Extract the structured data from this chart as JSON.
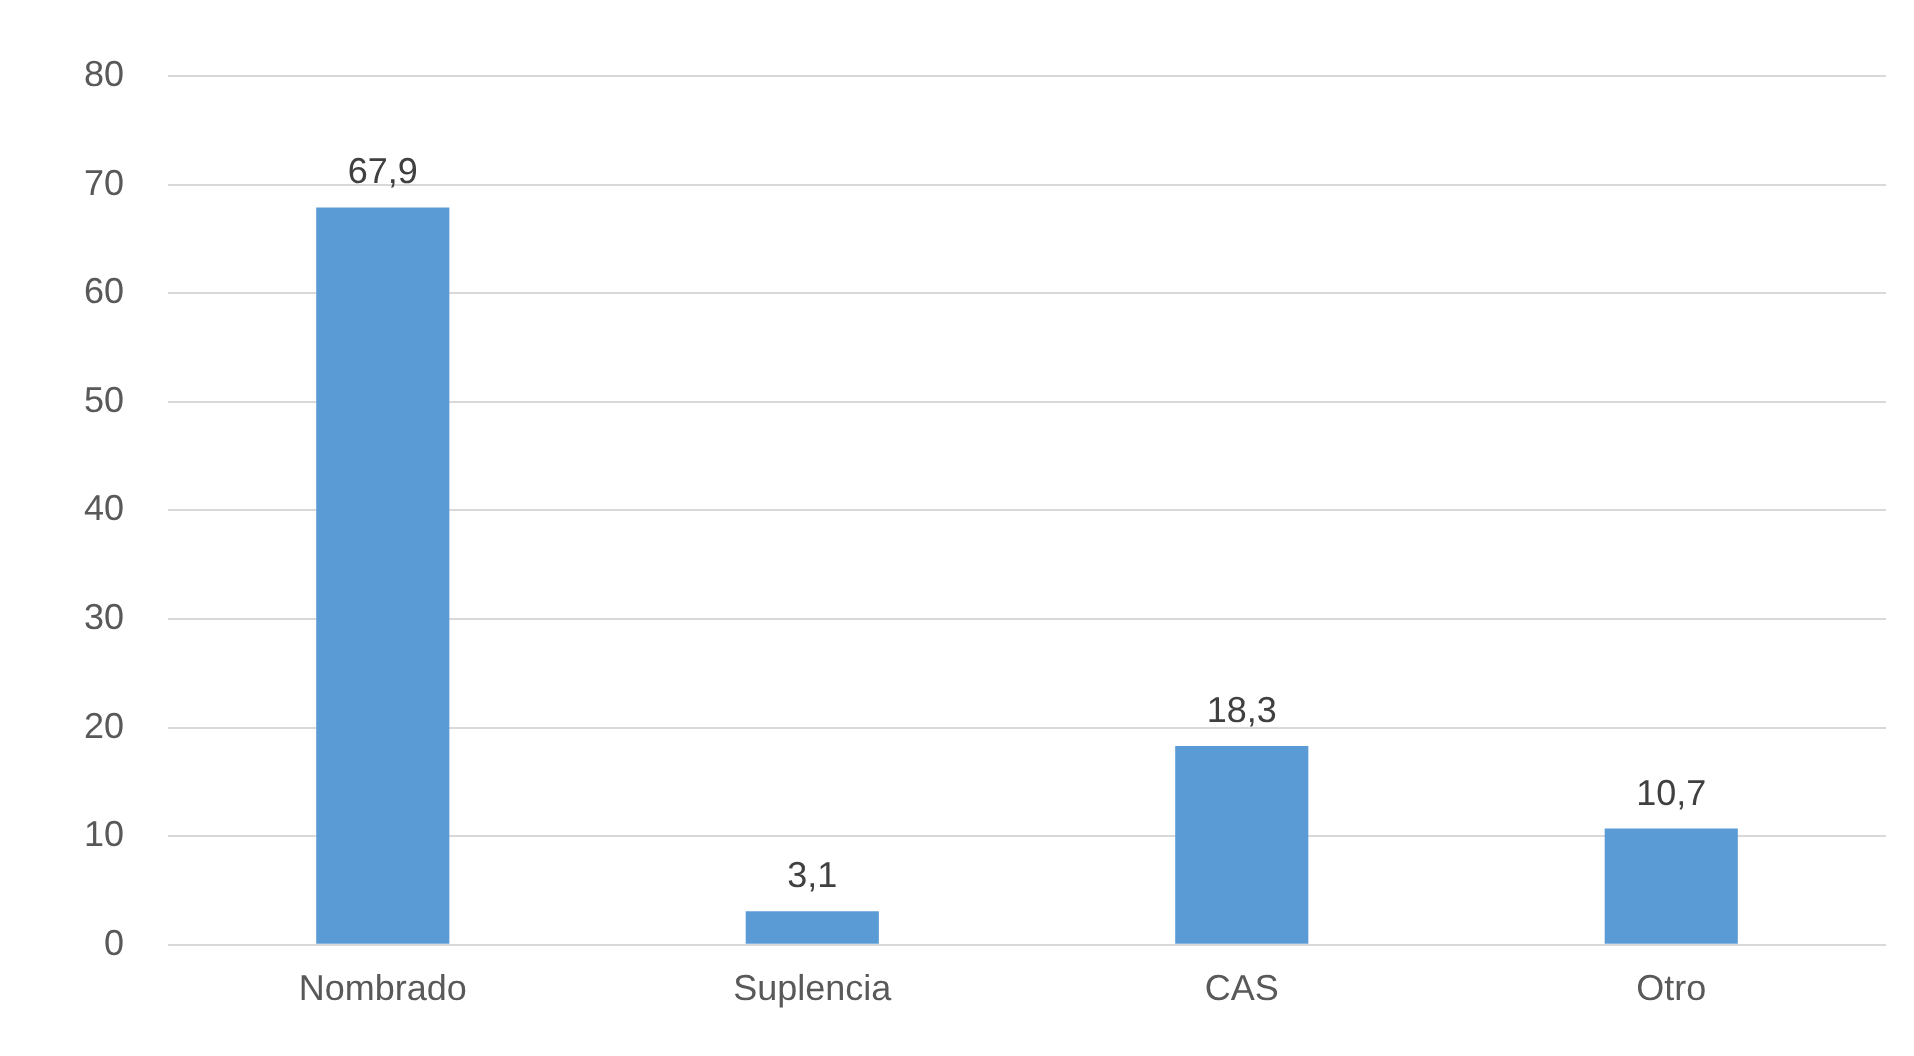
{
  "chart_data": {
    "type": "bar",
    "categories": [
      "Nombrado",
      "Suplencia",
      "CAS",
      "Otro"
    ],
    "values": [
      67.9,
      3.1,
      18.3,
      10.7
    ],
    "color": "#5b9bd5",
    "value_labels": [
      "67,9",
      "3,1",
      "18,3",
      "10,7"
    ],
    "ylim": [
      0,
      80
    ],
    "yticks": [
      0,
      10,
      20,
      30,
      40,
      50,
      60,
      70,
      80
    ],
    "grid": "y",
    "legend": false
  }
}
